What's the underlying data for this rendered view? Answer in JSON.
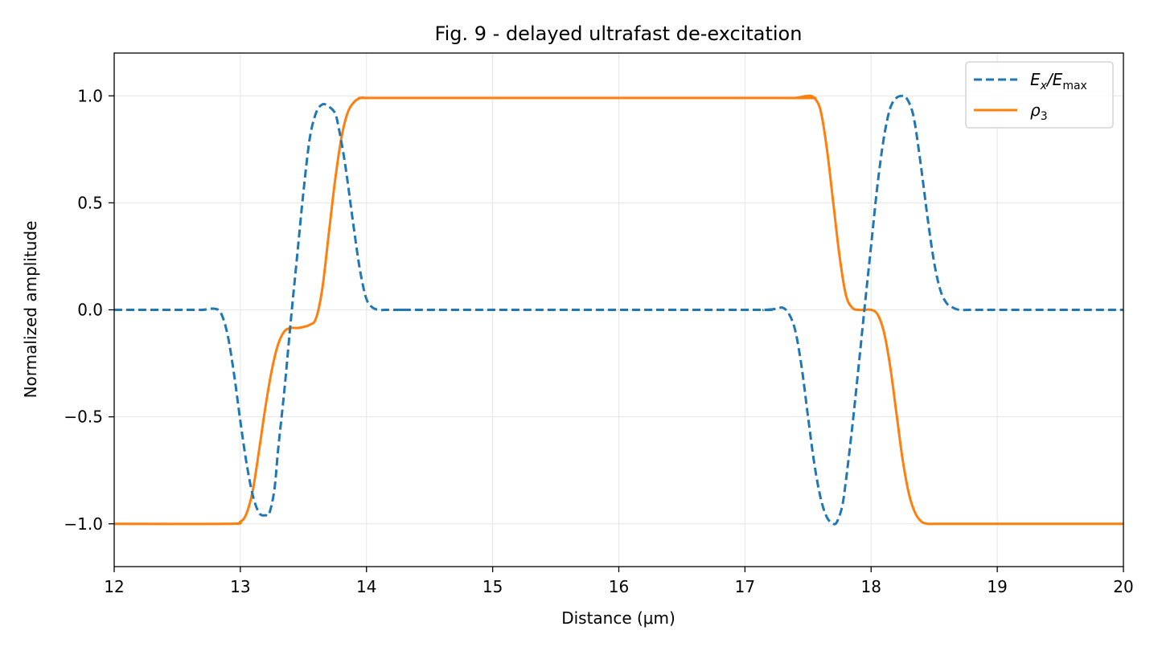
{
  "chart_data": {
    "type": "line",
    "title": "Fig. 9 - delayed ultrafast de-excitation",
    "xlabel": "Distance (μm)",
    "ylabel": "Normalized amplitude",
    "xlim": [
      12,
      20
    ],
    "ylim": [
      -1.2,
      1.2
    ],
    "xticks": [
      12,
      13,
      14,
      15,
      16,
      17,
      18,
      19,
      20
    ],
    "yticks": [
      -1.0,
      -0.5,
      0.0,
      0.5,
      1.0
    ],
    "xtick_labels": [
      "12",
      "13",
      "14",
      "15",
      "16",
      "17",
      "18",
      "19",
      "20"
    ],
    "ytick_labels": [
      "−1.0",
      "−0.5",
      "0.0",
      "0.5",
      "1.0"
    ],
    "grid": true,
    "legend_position": "top-right",
    "series": [
      {
        "name": "E_x/E_max",
        "name_main": "E",
        "name_sub1": "x",
        "name_mid": "/E",
        "name_sub2": "max",
        "color": "#1f77b4",
        "dash": "dashed",
        "x": [
          12.0,
          12.6,
          12.7,
          12.8,
          12.85,
          12.9,
          12.95,
          13.0,
          13.05,
          13.1,
          13.15,
          13.2,
          13.23,
          13.27,
          13.3,
          13.35,
          13.4,
          13.45,
          13.5,
          13.55,
          13.6,
          13.65,
          13.7,
          13.75,
          13.78,
          13.82,
          13.85,
          13.9,
          13.95,
          14.0,
          14.05,
          14.1,
          14.15,
          14.2,
          14.3,
          14.5,
          17.0,
          17.15,
          17.25,
          17.3,
          17.35,
          17.4,
          17.45,
          17.5,
          17.55,
          17.6,
          17.65,
          17.7,
          17.73,
          17.77,
          17.8,
          17.85,
          17.9,
          17.95,
          18.0,
          18.05,
          18.1,
          18.15,
          18.2,
          18.25,
          18.28,
          18.32,
          18.35,
          18.4,
          18.45,
          18.5,
          18.55,
          18.6,
          18.65,
          18.7,
          18.8,
          19.0,
          20.0
        ],
        "y": [
          0.0,
          0.0,
          0.0,
          0.005,
          -0.02,
          -0.12,
          -0.3,
          -0.52,
          -0.72,
          -0.87,
          -0.95,
          -0.96,
          -0.95,
          -0.84,
          -0.65,
          -0.37,
          -0.05,
          0.25,
          0.55,
          0.8,
          0.92,
          0.96,
          0.95,
          0.92,
          0.85,
          0.72,
          0.6,
          0.38,
          0.18,
          0.05,
          0.01,
          0.0,
          0.0,
          0.0,
          0.0,
          0.0,
          0.0,
          0.0,
          0.005,
          0.01,
          -0.02,
          -0.1,
          -0.27,
          -0.5,
          -0.72,
          -0.88,
          -0.97,
          -1.0,
          -0.99,
          -0.92,
          -0.8,
          -0.55,
          -0.27,
          0.02,
          0.3,
          0.58,
          0.8,
          0.94,
          0.99,
          1.0,
          0.99,
          0.94,
          0.86,
          0.65,
          0.42,
          0.22,
          0.09,
          0.03,
          0.01,
          0.0,
          0.0,
          0.0,
          0.0
        ]
      },
      {
        "name": "ρ_3",
        "name_main": "ρ",
        "name_sub1": "3",
        "color": "#ff7f0e",
        "dash": "solid",
        "x": [
          12.0,
          12.9,
          13.0,
          13.05,
          13.1,
          13.15,
          13.2,
          13.25,
          13.3,
          13.35,
          13.4,
          13.45,
          13.5,
          13.55,
          13.6,
          13.65,
          13.7,
          13.75,
          13.8,
          13.85,
          13.9,
          13.95,
          14.0,
          14.05,
          14.1,
          14.2,
          17.3,
          17.4,
          17.45,
          17.5,
          17.55,
          17.6,
          17.65,
          17.7,
          17.75,
          17.8,
          17.85,
          17.9,
          17.95,
          18.0,
          18.05,
          18.1,
          18.15,
          18.2,
          18.25,
          18.3,
          18.35,
          18.4,
          18.45,
          18.5,
          18.55,
          18.6,
          18.7,
          20.0
        ],
        "y": [
          -1.0,
          -1.0,
          -0.99,
          -0.95,
          -0.84,
          -0.65,
          -0.45,
          -0.28,
          -0.16,
          -0.1,
          -0.085,
          -0.085,
          -0.08,
          -0.07,
          -0.04,
          0.1,
          0.35,
          0.6,
          0.8,
          0.92,
          0.97,
          0.99,
          0.99,
          0.99,
          0.99,
          0.99,
          0.99,
          0.99,
          0.995,
          1.0,
          0.99,
          0.93,
          0.75,
          0.5,
          0.25,
          0.07,
          0.01,
          0.0,
          0.0,
          0.0,
          -0.02,
          -0.1,
          -0.26,
          -0.48,
          -0.7,
          -0.86,
          -0.95,
          -0.99,
          -1.0,
          -1.0,
          -1.0,
          -1.0,
          -1.0,
          -1.0
        ]
      }
    ]
  }
}
